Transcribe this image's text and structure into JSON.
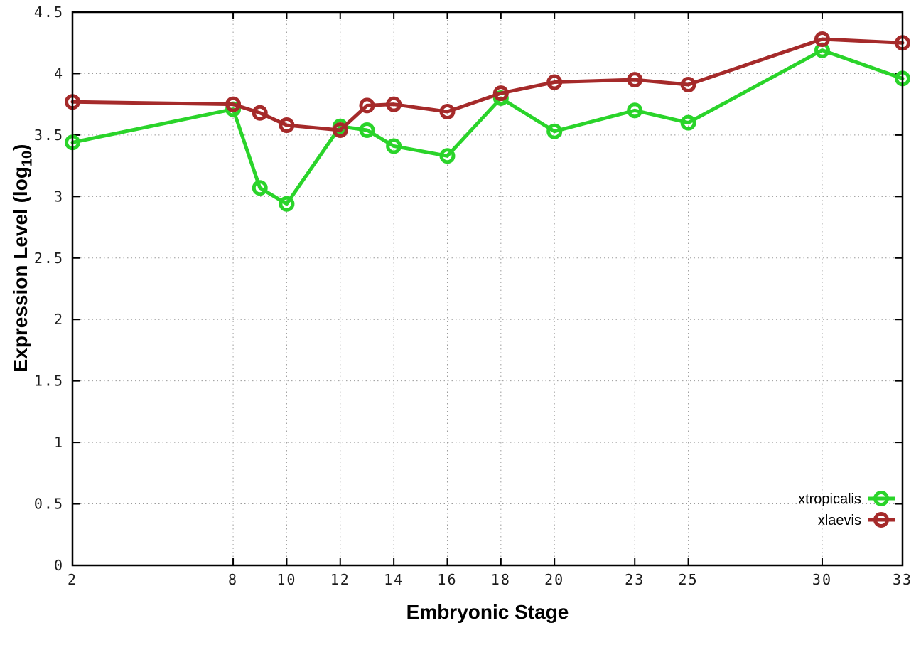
{
  "chart_data": {
    "type": "line",
    "title": "",
    "xlabel": "Embryonic Stage",
    "ylabel": "Expression Level (log10)",
    "ylabel_prefix": "Expression Level (log",
    "ylabel_sub": "10",
    "ylabel_suffix": ")",
    "xlim": [
      2,
      33
    ],
    "ylim": [
      0,
      4.5
    ],
    "grid": true,
    "grid_style": "dotted",
    "frame": "full-box",
    "x_ticks": [
      2,
      8,
      10,
      12,
      14,
      16,
      18,
      20,
      23,
      25,
      30,
      33
    ],
    "x_tick_labels": [
      "2",
      "8",
      "10",
      "12",
      "14",
      "16",
      "18",
      "20",
      "23",
      "25",
      "30",
      "33"
    ],
    "y_ticks": [
      0,
      0.5,
      1,
      1.5,
      2,
      2.5,
      3,
      3.5,
      4,
      4.5
    ],
    "y_tick_labels": [
      "0",
      "0.5",
      "1",
      "1.5",
      "2",
      "2.5",
      "3",
      "3.5",
      "4",
      "4.5"
    ],
    "x": [
      2,
      8,
      9,
      10,
      12,
      13,
      14,
      16,
      18,
      20,
      23,
      25,
      30,
      33
    ],
    "series": [
      {
        "name": "xtropicalis",
        "color": "#2ad42a",
        "marker": "open-circle",
        "values": [
          3.44,
          3.71,
          3.07,
          2.94,
          3.57,
          3.54,
          3.41,
          3.33,
          3.8,
          3.53,
          3.7,
          3.6,
          4.19,
          3.96
        ]
      },
      {
        "name": "xlaevis",
        "color": "#a52a2a",
        "marker": "open-circle",
        "values": [
          3.77,
          3.75,
          3.68,
          3.58,
          3.54,
          3.74,
          3.75,
          3.69,
          3.84,
          3.93,
          3.95,
          3.91,
          4.28,
          4.25
        ]
      }
    ],
    "legend": {
      "position": "inside-bottom-right",
      "entries": [
        "xtropicalis",
        "xlaevis"
      ]
    }
  }
}
